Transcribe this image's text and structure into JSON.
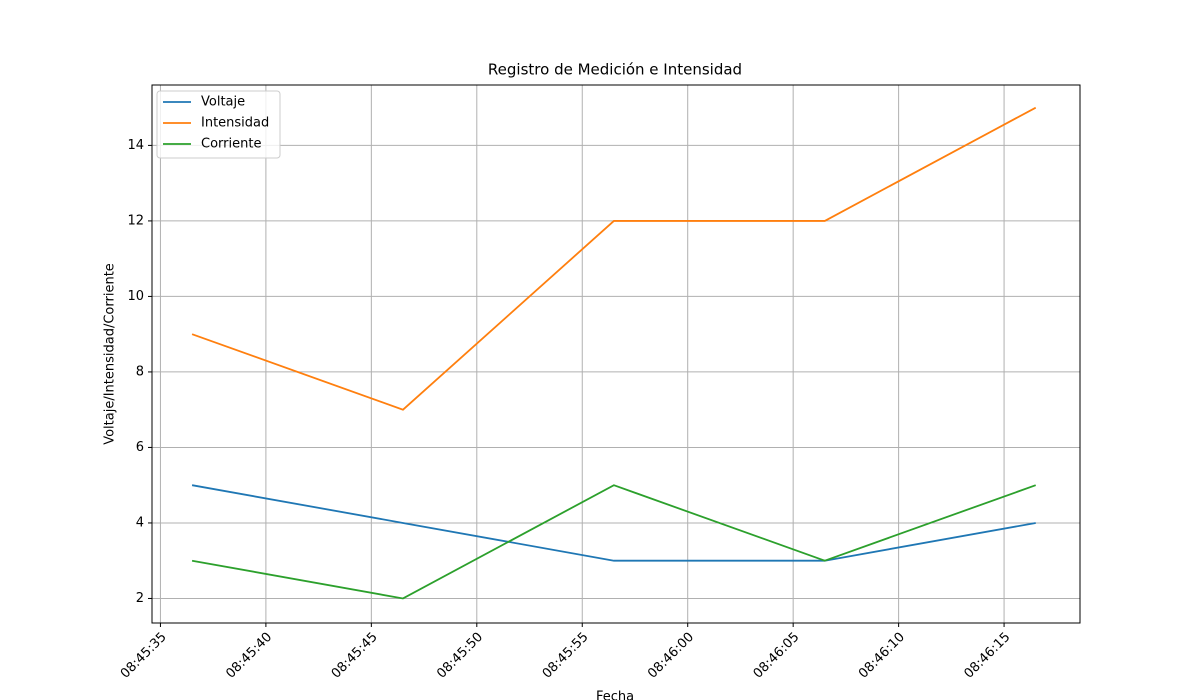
{
  "chart_data": {
    "type": "line",
    "title": "Registro de Medición e Intensidad",
    "x_label": "Fecha",
    "y_label": "Voltaje/Intensidad/Corriente",
    "x": [
      "08:45:36.5",
      "08:45:46.5",
      "08:45:56.5",
      "08:46:06.5",
      "08:46:16.5"
    ],
    "series": [
      {
        "name": "Voltaje",
        "color": "#1f77b4",
        "values": [
          5,
          4,
          3,
          3,
          4
        ]
      },
      {
        "name": "Intensidad",
        "color": "#ff7f0e",
        "values": [
          9,
          7,
          12,
          12,
          15
        ]
      },
      {
        "name": "Corriente",
        "color": "#2ca02c",
        "values": [
          3,
          2,
          5,
          3,
          5
        ]
      }
    ],
    "xlim": [
      "08:45:34.6",
      "08:46:18.6"
    ],
    "xticks": [
      "08:45:35",
      "08:45:40",
      "08:45:45",
      "08:45:50",
      "08:45:55",
      "08:46:00",
      "08:46:05",
      "08:46:10",
      "08:46:15"
    ],
    "ylim": [
      1.35,
      15.6
    ],
    "yticks": [
      2,
      4,
      6,
      8,
      10,
      12,
      14
    ],
    "grid": true,
    "legend": "upper left"
  }
}
